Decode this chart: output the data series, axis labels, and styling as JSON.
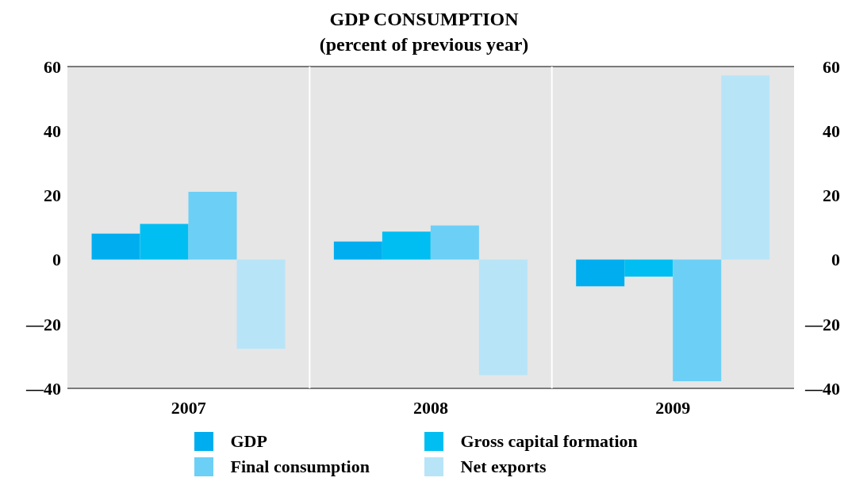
{
  "chart_data": {
    "type": "bar",
    "title": "GDP CONSUMPTION",
    "subtitle": "(percent of previous year)",
    "categories": [
      "2007",
      "2008",
      "2009"
    ],
    "series": [
      {
        "name": "GDP",
        "color": "#00aeef",
        "values": [
          8.1,
          5.6,
          -8.3
        ]
      },
      {
        "name": "Gross capital formation",
        "color": "#00bef2",
        "values": [
          11.1,
          8.7,
          -5.3
        ]
      },
      {
        "name": "Final consumption",
        "color": "#6ccff6",
        "values": [
          21.1,
          10.6,
          -37.8
        ]
      },
      {
        "name": "Net exports",
        "color": "#b8e4f8",
        "values": [
          -27.7,
          -35.9,
          57.2
        ]
      }
    ],
    "ylim": [
      -40,
      60
    ],
    "yticks": [
      {
        "value": -40,
        "label": "—40"
      },
      {
        "value": -20,
        "label": "—20"
      },
      0,
      20,
      40,
      60
    ],
    "y2lim": [
      -40,
      60
    ],
    "y2ticks": [
      {
        "value": -40,
        "label": "—40"
      },
      {
        "value": -20,
        "label": "—20"
      },
      0,
      20,
      40,
      60
    ],
    "grid": true,
    "legend": "bottom"
  }
}
